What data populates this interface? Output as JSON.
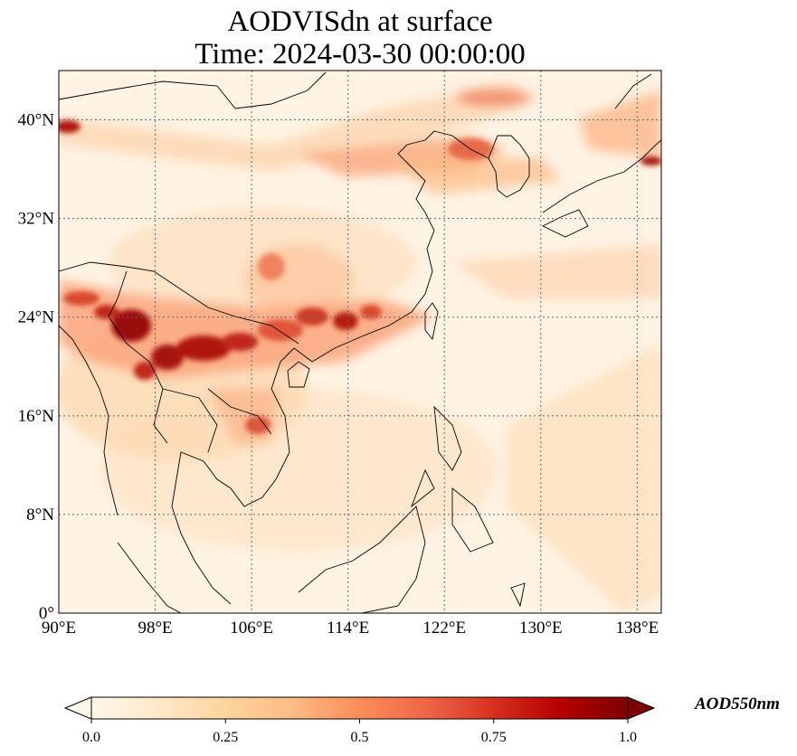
{
  "title": {
    "line1": "AODVISdn at surface",
    "line2": "Time: 2024-03-30 00:00:00"
  },
  "map": {
    "lon_range": [
      90,
      140
    ],
    "lat_range": [
      0,
      44
    ],
    "lon_ticks": [
      "90°E",
      "98°E",
      "106°E",
      "114°E",
      "122°E",
      "130°E",
      "138°E"
    ],
    "lat_ticks": [
      "0°",
      "8°N",
      "16°N",
      "24°N",
      "32°N",
      "40°N"
    ],
    "gridlines": true,
    "colormap": "OrRd",
    "colors": {
      "low": "#fff7ec",
      "mid": "#fc8d59",
      "high": "#7f0000"
    }
  },
  "colorbar": {
    "label": "AOD550nm",
    "ticks": [
      "0.0",
      "0.25",
      "0.5",
      "0.75",
      "1.0"
    ],
    "range": [
      0.0,
      1.0
    ],
    "extend": "both"
  }
}
